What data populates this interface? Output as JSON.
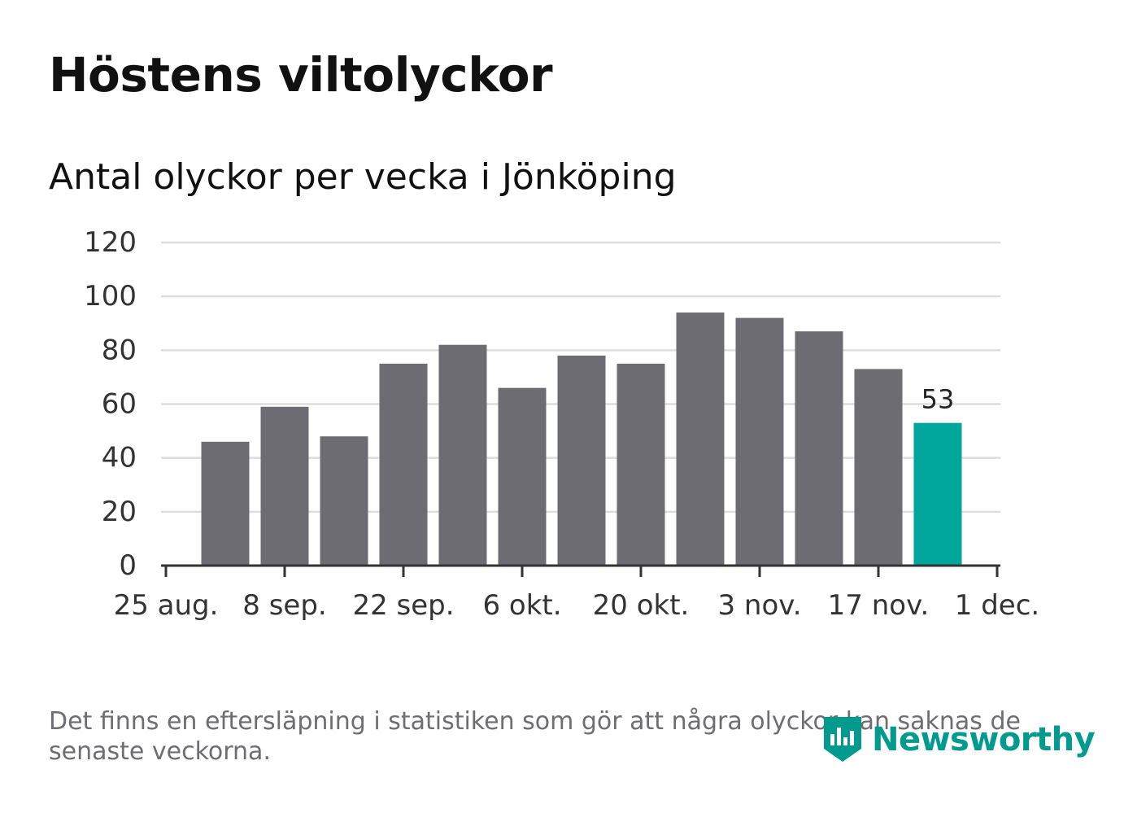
{
  "title": "Höstens viltolyckor",
  "subtitle": "Antal olyckor per vecka i Jönköping",
  "note": "Det finns en eftersläpning i statistiken som gör att några olyckor kan saknas de senaste veckorna.",
  "brand": {
    "name": "Newsworthy",
    "icon": "newsworthy-logo-icon"
  },
  "colors": {
    "bar": "#6d6c72",
    "highlight": "#00a59b",
    "grid": "#dddddd",
    "axis": "#333333",
    "text": "#333333"
  },
  "chart_data": {
    "type": "bar",
    "title": "Höstens viltolyckor",
    "subtitle": "Antal olyckor per vecka i Jönköping",
    "xlabel": "",
    "ylabel": "",
    "ylim": [
      0,
      120
    ],
    "y_ticks": [
      0,
      20,
      40,
      60,
      80,
      100,
      120
    ],
    "x_tick_labels": [
      "25 aug.",
      "8 sep.",
      "22 sep.",
      "6 okt.",
      "20 okt.",
      "3 nov.",
      "17 nov.",
      "1 dec."
    ],
    "values": [
      46,
      59,
      48,
      75,
      82,
      66,
      78,
      75,
      94,
      92,
      87,
      73,
      53
    ],
    "highlight_index": 12,
    "highlight_label": "53",
    "grid": true,
    "legend": "none"
  }
}
